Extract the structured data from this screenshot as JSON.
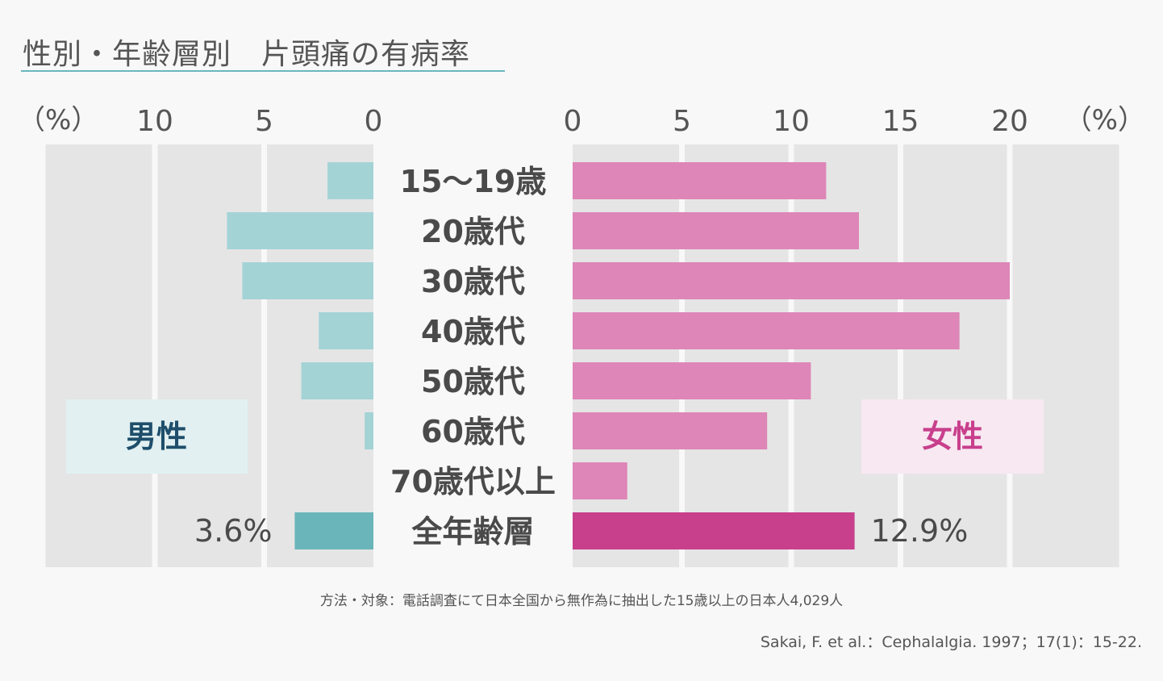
{
  "title": "性別・年齢層別　片頭痛の有病率",
  "chart_data": {
    "type": "bar",
    "orientation": "horizontal-butterfly",
    "categories": [
      "15〜19歳",
      "20歳代",
      "30歳代",
      "40歳代",
      "50歳代",
      "60歳代",
      "70歳代以上",
      "全年齢層"
    ],
    "series": [
      {
        "name": "男性",
        "values": [
          2.1,
          6.7,
          6.0,
          2.5,
          3.3,
          0.4,
          0,
          3.6
        ],
        "color": "#a4d3d6",
        "total_color": "#6ab5b9"
      },
      {
        "name": "女性",
        "values": [
          11.6,
          13.1,
          20.0,
          17.7,
          10.9,
          8.9,
          2.5,
          12.9
        ],
        "color": "#de86b8",
        "total_color": "#c83f8c"
      }
    ],
    "left_axis": {
      "ticks": [
        "10",
        "5",
        "0"
      ],
      "unit_label": "（%）",
      "range": [
        0,
        15
      ]
    },
    "right_axis": {
      "ticks": [
        "0",
        "5",
        "10",
        "15",
        "20"
      ],
      "unit_label": "（%）",
      "range": [
        0,
        25
      ]
    },
    "total_labels": {
      "left": "3.6%",
      "right": "12.9%"
    },
    "legend": {
      "left": "男性",
      "right": "女性"
    },
    "grid": true
  },
  "footnote": "方法・対象：電話調査にて日本全国から無作為に抽出した15歳以上の日本人4,029人",
  "citation": "Sakai, F. et al.：Cephalalgia. 1997；17(1)：15-22.",
  "colors": {
    "grid_bg": "#e5e5e5",
    "male_legend_bg": "#e2f0f1",
    "male_legend_text": "#1e4e6b",
    "female_legend_bg": "#f7e8f1",
    "female_legend_text": "#c83f8c"
  }
}
